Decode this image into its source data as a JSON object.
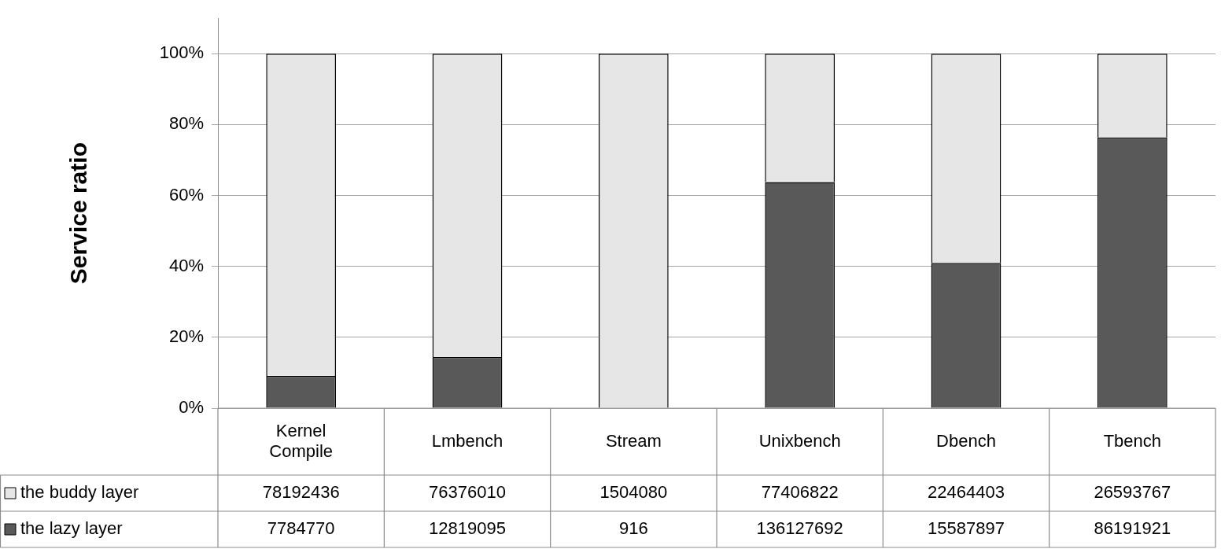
{
  "chart_data": {
    "type": "bar",
    "stacked": true,
    "ylabel": "Service ratio",
    "categories": [
      "Kernel\nCompile",
      "Lmbench",
      "Stream",
      "Unixbench",
      "Dbench",
      "Tbench"
    ],
    "series": [
      {
        "name": "the lazy layer",
        "color": "#595959",
        "values": [
          9.1,
          14.4,
          0.1,
          63.8,
          41.0,
          76.4
        ]
      },
      {
        "name": "the buddy layer",
        "color": "#e6e6e6",
        "values": [
          90.9,
          85.6,
          99.9,
          36.2,
          59.0,
          23.6
        ]
      }
    ],
    "annotations": [
      "78192436",
      "76376010",
      "1504080",
      "77406822",
      "22464403",
      "26593767",
      "7784770",
      "12819095",
      "916",
      "136127692",
      "15587897",
      "86191921"
    ],
    "ylim": [
      0,
      110
    ],
    "yticks": [
      {
        "value": 0,
        "label": "0%"
      },
      {
        "value": 20,
        "label": "20%"
      },
      {
        "value": 40,
        "label": "40%"
      },
      {
        "value": 60,
        "label": "60%"
      },
      {
        "value": 80,
        "label": "80%"
      },
      {
        "value": 100,
        "label": "100%"
      }
    ],
    "grid": "y",
    "legend": "bottom"
  }
}
